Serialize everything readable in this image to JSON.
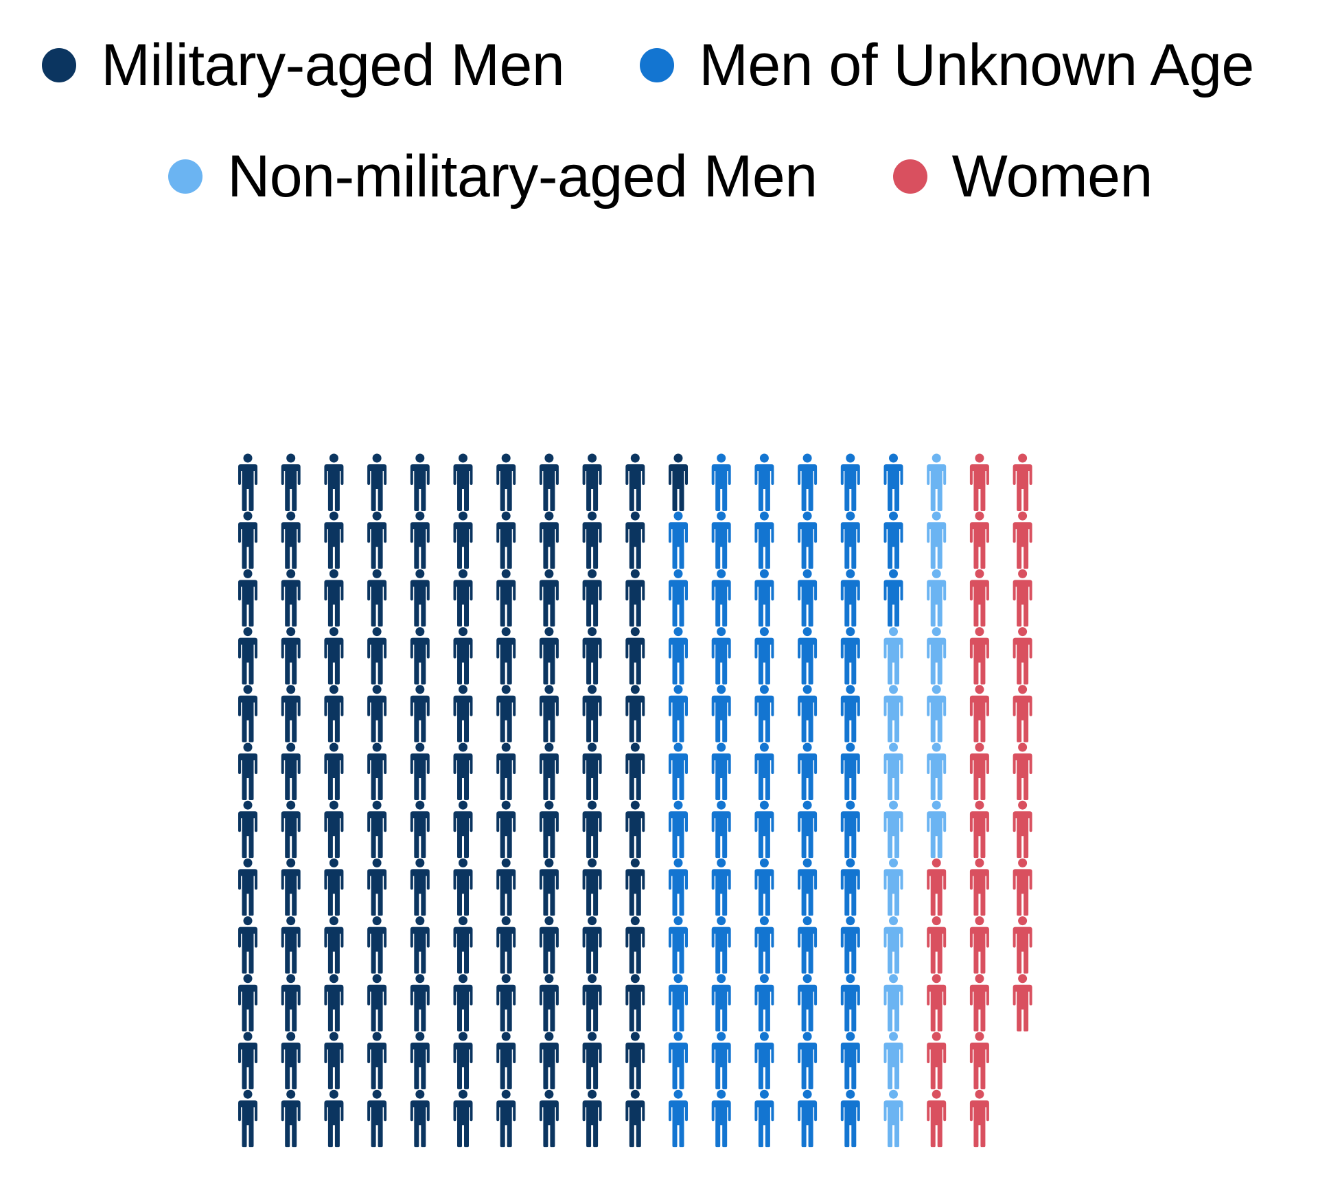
{
  "chart_data": {
    "type": "waffle",
    "unit": "person",
    "columns": 20,
    "fill_order": "column-major, top-to-bottom",
    "legend_position": "top",
    "grid": false,
    "categories": [
      {
        "name": "Military-aged Men",
        "count": 121,
        "color": "#0b3560"
      },
      {
        "name": "Men of Unknown Age",
        "count": 62,
        "color": "#1375d1"
      },
      {
        "name": "Non-military-aged Men",
        "count": 16,
        "color": "#6bb4f2"
      },
      {
        "name": "Women",
        "count": 27,
        "color": "#d9505f"
      }
    ],
    "total": 226
  }
}
